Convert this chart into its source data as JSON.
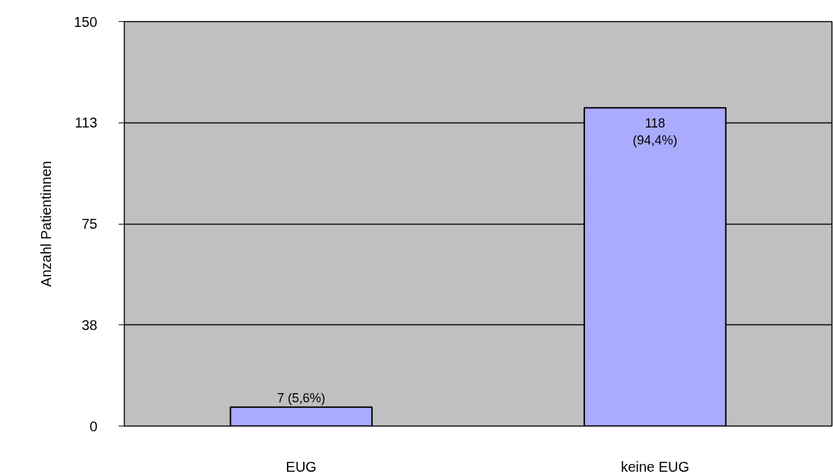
{
  "chart_data": {
    "type": "bar",
    "ylabel": "Anzahl Patientinnen",
    "categories": [
      "EUG",
      "keine EUG"
    ],
    "values": [
      7,
      118
    ],
    "color": "#aaaaff",
    "value_labels": [
      "7 (5,6%)",
      "118\n(94,4%)"
    ],
    "ylim": [
      0,
      150
    ],
    "yticks": [
      0,
      {
        "value": 37.5,
        "label": "38"
      },
      75,
      {
        "value": 112.5,
        "label": "113"
      },
      150
    ],
    "grid": "y"
  }
}
